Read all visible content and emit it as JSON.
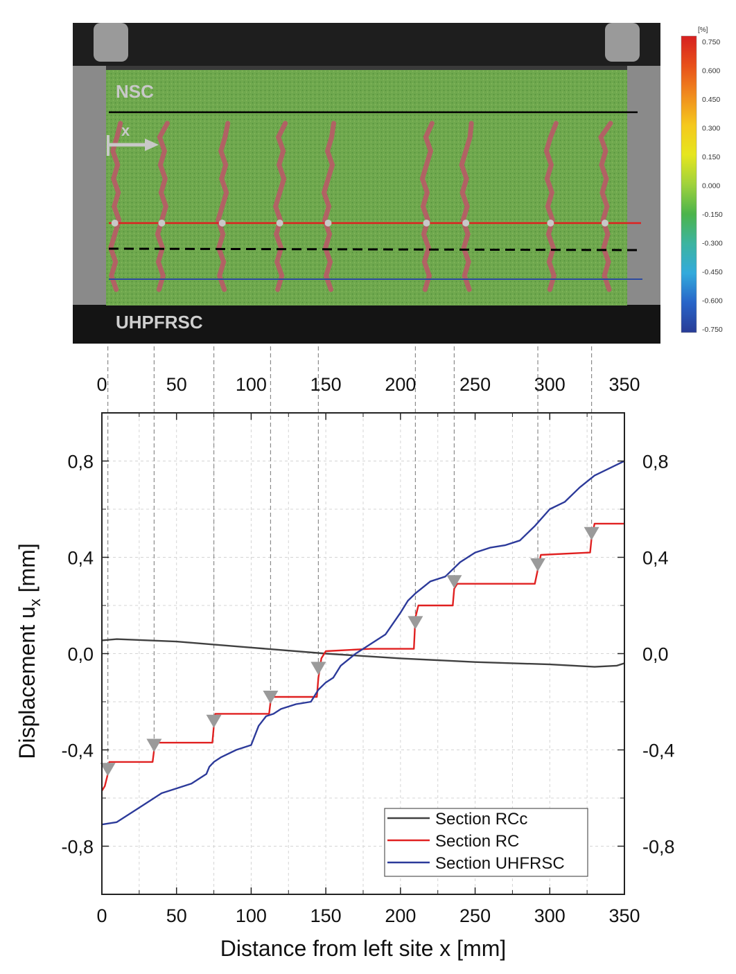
{
  "photo": {
    "label_top": "NSC",
    "label_bottom": "UHPFRSC",
    "arrow_label": "x"
  },
  "colorbar": {
    "unit": "[%]",
    "ticks": [
      "0.750",
      "0.600",
      "0.450",
      "0.300",
      "0.150",
      "0.000",
      "-0.150",
      "-0.300",
      "-0.450",
      "-0.600",
      "-0.750"
    ],
    "colors": [
      "#d62020",
      "#e8501a",
      "#f08c1e",
      "#f5c81e",
      "#e6e61e",
      "#a0d23c",
      "#4bb44b",
      "#3cb4a0",
      "#32aadc",
      "#2864c8",
      "#283c96"
    ]
  },
  "crack_positions_mm": [
    4,
    35,
    75,
    113,
    145,
    210,
    236,
    292,
    328
  ],
  "chart_data": {
    "type": "line",
    "xlabel": "Distance from left site x [mm]",
    "ylabel": "Displacement u",
    "ylabel_sub": "x",
    "ylabel_unit": " [mm]",
    "xlim": [
      0,
      350
    ],
    "ylim": [
      -1.0,
      1.0
    ],
    "xticks": [
      "0",
      "50",
      "100",
      "150",
      "200",
      "250",
      "300",
      "350"
    ],
    "xtick_values": [
      0,
      50,
      100,
      150,
      200,
      250,
      300,
      350
    ],
    "yticks": [
      "-0,8",
      "-0,4",
      "0,0",
      "0,4",
      "0,8"
    ],
    "ytick_values": [
      -0.8,
      -0.4,
      0.0,
      0.4,
      0.8
    ],
    "grid": true,
    "legend_position": "bottom-right",
    "series": [
      {
        "name": "Section RCc",
        "color": "#404040",
        "x": [
          0,
          10,
          50,
          100,
          150,
          200,
          250,
          300,
          330,
          345,
          350
        ],
        "y": [
          0.055,
          0.06,
          0.05,
          0.025,
          0.0,
          -0.02,
          -0.035,
          -0.045,
          -0.055,
          -0.05,
          -0.04
        ]
      },
      {
        "name": "Section RC",
        "color": "#e02020",
        "x": [
          0,
          2,
          4,
          5,
          34,
          35,
          36,
          74,
          75,
          76,
          112,
          113,
          114,
          144,
          145,
          147,
          150,
          180,
          209,
          210,
          212,
          235,
          236,
          238,
          290,
          292,
          294,
          327,
          328,
          330,
          350
        ],
        "y": [
          -0.57,
          -0.55,
          -0.5,
          -0.45,
          -0.45,
          -0.4,
          -0.37,
          -0.37,
          -0.3,
          -0.25,
          -0.25,
          -0.2,
          -0.18,
          -0.18,
          -0.1,
          -0.02,
          0.01,
          0.02,
          0.02,
          0.15,
          0.2,
          0.2,
          0.27,
          0.29,
          0.29,
          0.35,
          0.41,
          0.42,
          0.48,
          0.54,
          0.54
        ]
      },
      {
        "name": "Section UHFRSC",
        "color": "#2c3a9a",
        "x": [
          0,
          10,
          20,
          30,
          40,
          50,
          60,
          70,
          72,
          75,
          80,
          90,
          100,
          105,
          110,
          115,
          120,
          130,
          140,
          145,
          150,
          155,
          160,
          170,
          175,
          180,
          190,
          200,
          205,
          210,
          220,
          230,
          240,
          250,
          260,
          270,
          280,
          290,
          300,
          310,
          320,
          330,
          340,
          350
        ],
        "y": [
          -0.71,
          -0.7,
          -0.66,
          -0.62,
          -0.58,
          -0.56,
          -0.54,
          -0.5,
          -0.47,
          -0.45,
          -0.43,
          -0.4,
          -0.38,
          -0.3,
          -0.26,
          -0.25,
          -0.23,
          -0.21,
          -0.2,
          -0.15,
          -0.12,
          -0.1,
          -0.05,
          0.0,
          0.02,
          0.04,
          0.08,
          0.17,
          0.22,
          0.25,
          0.3,
          0.32,
          0.38,
          0.42,
          0.44,
          0.45,
          0.47,
          0.53,
          0.6,
          0.63,
          0.69,
          0.74,
          0.77,
          0.8
        ]
      }
    ],
    "markers": {
      "shape": "triangle-down",
      "color": "#9a9a9a",
      "points": [
        [
          4,
          -0.48
        ],
        [
          35,
          -0.38
        ],
        [
          75,
          -0.28
        ],
        [
          113,
          -0.18
        ],
        [
          145,
          -0.06
        ],
        [
          210,
          0.13
        ],
        [
          236,
          0.3
        ],
        [
          292,
          0.37
        ],
        [
          328,
          0.5
        ]
      ]
    }
  }
}
